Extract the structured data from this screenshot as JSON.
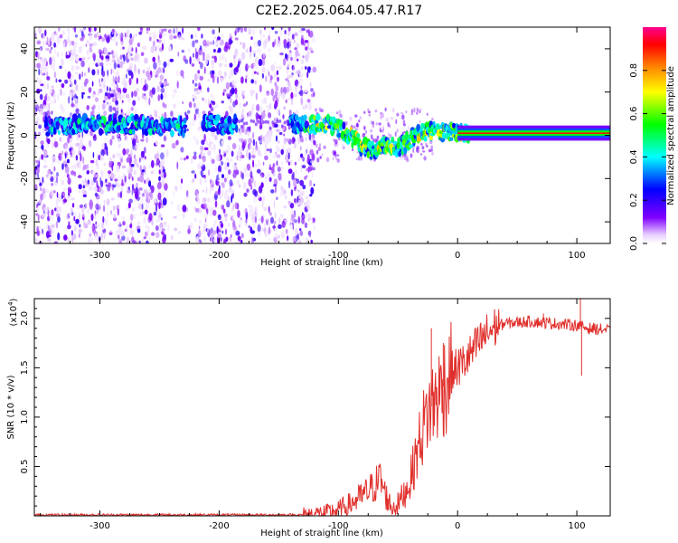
{
  "title": "C2E2.2025.064.05.47.R17",
  "chart_data": [
    {
      "type": "heatmap",
      "xlabel": "Height of straight line (km)",
      "ylabel": "Frequency (Hz)",
      "xlim": [
        -355,
        128
      ],
      "ylim": [
        -50,
        50
      ],
      "xticks": [
        -300,
        -200,
        -100,
        0,
        100
      ],
      "yticks": [
        -40,
        -20,
        0,
        20,
        40
      ],
      "colorbar": {
        "label": "Normalized spectral amplitude",
        "range": [
          0,
          1
        ],
        "ticks": [
          0.0,
          0.2,
          0.4,
          0.6,
          0.8
        ],
        "tick_labels": [
          "0.0",
          "0.2",
          "0.4",
          "0.6",
          "0.8"
        ],
        "colormap": [
          "#ffffff",
          "#8000ff",
          "#0000ff",
          "#00ffff",
          "#00ff00",
          "#ffff00",
          "#ff8000",
          "#ff0000",
          "#ff00a0"
        ]
      },
      "ridge": {
        "x": [
          -340,
          -320,
          -300,
          -280,
          -260,
          -240,
          -230,
          -210,
          -190,
          -130,
          -110,
          -100,
          -90,
          -80,
          -70,
          -60,
          -50,
          -40,
          -30,
          -20,
          -10,
          0,
          10,
          128
        ],
        "y": [
          4,
          5,
          5,
          5,
          5,
          4,
          4,
          5,
          5,
          5,
          5,
          3,
          0,
          -5,
          -8,
          -4,
          -6,
          -2,
          1,
          2,
          1,
          2,
          1,
          1
        ]
      },
      "noise_region_x": [
        -355,
        -120
      ],
      "grid": false,
      "legend": "none"
    },
    {
      "type": "line",
      "xlabel": "Height of straight line (km)",
      "ylabel": "SNR (10 * v/v)",
      "scale_note": "(x10",
      "scale_exp": "4",
      "xlim": [
        -355,
        128
      ],
      "ylim": [
        0,
        2.2
      ],
      "xticks": [
        -300,
        -200,
        -100,
        0,
        100
      ],
      "yticks": [
        0.5,
        1.0,
        1.5,
        2.0
      ],
      "ytick_labels": [
        "0.5",
        "1.0",
        "1.5",
        "2.0"
      ],
      "series": [
        {
          "color": "#e0302c",
          "x": [
            -355,
            -300,
            -200,
            -130,
            -110,
            -100,
            -90,
            -80,
            -70,
            -65,
            -60,
            -55,
            -50,
            -45,
            -40,
            -35,
            -30,
            -25,
            -20,
            -15,
            -10,
            -5,
            0,
            5,
            10,
            15,
            20,
            25,
            30,
            35,
            40,
            60,
            80,
            100,
            110,
            128
          ],
          "y": [
            0.01,
            0.01,
            0.01,
            0.01,
            0.03,
            0.06,
            0.12,
            0.2,
            0.3,
            0.38,
            0.2,
            0.08,
            0.12,
            0.22,
            0.35,
            0.6,
            0.85,
            1.05,
            1.15,
            1.25,
            1.35,
            1.45,
            1.5,
            1.55,
            1.62,
            1.7,
            1.78,
            1.85,
            1.9,
            1.93,
            1.95,
            1.97,
            1.95,
            1.93,
            1.9,
            1.88
          ]
        }
      ],
      "grid": false,
      "legend": "none"
    }
  ]
}
